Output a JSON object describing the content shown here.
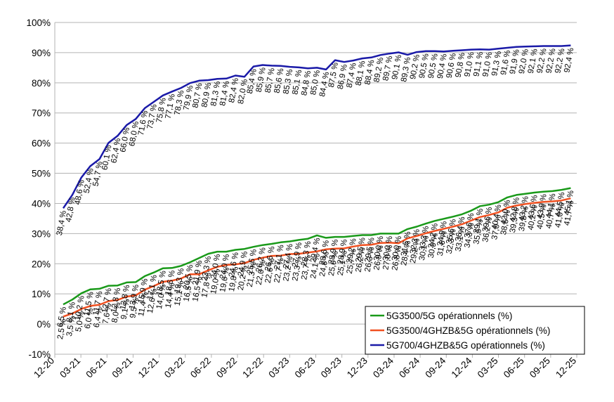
{
  "chart_data": {
    "type": "line",
    "title": "",
    "xlabel": "",
    "ylabel": "",
    "ylim": [
      -10,
      100
    ],
    "yticks": [
      -10,
      0,
      10,
      20,
      30,
      40,
      50,
      60,
      70,
      80,
      90,
      100
    ],
    "ytick_labels": [
      "-10%",
      "0%",
      "10%",
      "20%",
      "30%",
      "40%",
      "50%",
      "60%",
      "70%",
      "80%",
      "90%",
      "100%"
    ],
    "xtick_labels": [
      "12-20",
      "03-21",
      "06-21",
      "09-21",
      "12-21",
      "03-22",
      "06-22",
      "09-22",
      "12-22",
      "03-23",
      "06-23",
      "09-23",
      "12-23",
      "03-24",
      "06-24",
      "09-24",
      "12-24",
      "03-25",
      "06-25",
      "09-25",
      "12-25"
    ],
    "x_start_label": "12-20",
    "grid": "horizontal",
    "legend_position": "bottom-right",
    "series": [
      {
        "name": "5G3500/5G opérationnels (%)",
        "color": "#1a9a1a",
        "values": [
          6.5,
          8.1,
          10.2,
          11.5,
          11.7,
          12.7,
          12.8,
          13.8,
          13.9,
          15.9,
          17.1,
          18.5,
          18.6,
          19.3,
          20.5,
          21.9,
          23.3,
          24.0,
          24.0,
          24.6,
          24.9,
          25.6,
          26.2,
          26.6,
          27.1,
          27.4,
          27.9,
          28.3,
          29.4,
          28.6,
          28.9,
          28.9,
          29.2,
          29.5,
          29.5,
          30.0,
          30.0,
          30.0,
          31.5,
          32.3,
          33.3,
          34.2,
          34.9,
          35.6,
          36.4,
          37.6,
          39.1,
          39.6,
          40.4,
          42.0,
          42.8,
          43.2,
          43.6,
          43.9,
          44.1,
          44.5,
          45.1
        ]
      },
      {
        "name": "5G3500/4GHZB&5G opérationnels (%)",
        "color": "#f05020",
        "values": [
          2.5,
          3.5,
          5.0,
          6.0,
          6.4,
          7.6,
          8.0,
          9.1,
          9.5,
          11.4,
          12.6,
          14.0,
          14.4,
          15.1,
          16.5,
          16.5,
          17.8,
          19.0,
          19.6,
          19.8,
          20.2,
          21.3,
          22.0,
          22.6,
          22.7,
          23.2,
          23.3,
          23.7,
          24.1,
          24.8,
          25.0,
          25.1,
          25.7,
          26.2,
          26.3,
          26.9,
          27.0,
          26.8,
          28.4,
          29.2,
          30.1,
          30.9,
          31.6,
          32.3,
          33.1,
          34.3,
          35.5,
          36.2,
          37.0,
          38.6,
          39.3,
          39.8,
          40.2,
          40.5,
          40.7,
          41.0,
          41.7
        ]
      },
      {
        "name": "5G700/4GHZB&5G opérationnels (%)",
        "color": "#1a1aa8",
        "values": [
          38.4,
          42.8,
          48.6,
          52.4,
          54.7,
          60.1,
          62.4,
          66.0,
          68.0,
          71.6,
          73.7,
          75.8,
          77.1,
          78.3,
          79.9,
          80.7,
          80.9,
          81.3,
          81.4,
          82.4,
          82.0,
          85.4,
          85.9,
          85.7,
          85.6,
          85.3,
          85.1,
          84.8,
          85.0,
          84.4,
          87.5,
          86.9,
          87.4,
          88.1,
          88.4,
          89.2,
          89.7,
          90.1,
          89.3,
          90.2,
          90.5,
          90.5,
          90.4,
          90.6,
          90.8,
          91.0,
          91.1,
          91.0,
          91.3,
          91.6,
          91.9,
          92.0,
          92.1,
          92.2,
          92.2,
          92.2,
          92.4
        ]
      }
    ],
    "data_labels": [
      [
        "6,5 %",
        "8,1 %",
        "10,2 %",
        "11,5 %",
        "11,7 %",
        "12,7 %",
        "12,8 %",
        "13,8 %",
        "13,9 %",
        "15,9 %",
        "17,1 %",
        "18,5 %",
        "18,6 %",
        "19,3 %",
        "20,5 %",
        "21,9 %",
        "23,3 %",
        "24,0 %",
        "24,0 %",
        "24,6 %",
        "24,9 %",
        "25,6 %",
        "26,2 %",
        "26,6 %",
        "27,1 %",
        "27,4 %",
        "27,9 %",
        "28,3 %",
        "29,4 %",
        "28,6 %",
        "28,9 %",
        "28,9 %",
        "29,2 %",
        "29,5 %",
        "29,5 %",
        "30,0 %",
        "30,0 %",
        "30,0 %",
        "31,5 %",
        "32,3 %",
        "33,3 %",
        "34,2 %",
        "34,9 %",
        "35,6 %",
        "36,4 %",
        "37,6 %",
        "39,1 %",
        "39,6 %",
        "40,4 %",
        "42,0 %",
        "42,8 %",
        "43,2 %",
        "43,6 %",
        "43,9 %",
        "44,1 %",
        "44,5 %",
        "45,1 %"
      ],
      [
        "2,5 %",
        "3,5 %",
        "5,0 %",
        "6,0 %",
        "6,4 %",
        "7,6 %",
        "8,0 %",
        "9,1 %",
        "9,5 %",
        "11,4 %",
        "12,6 %",
        "14,0 %",
        "14,4 %",
        "15,1 %",
        "16,5 %",
        "16,5 %",
        "17,8 %",
        "19,0 %",
        "19,6 %",
        "19,8 %",
        "20,2 %",
        "21,3 %",
        "22,0 %",
        "22,6 %",
        "22,7 %",
        "23,2 %",
        "23,3 %",
        "23,7 %",
        "24,1 %",
        "24,8 %",
        "25,0 %",
        "25,1 %",
        "25,7 %",
        "26,2 %",
        "26,3 %",
        "26,9 %",
        "27,0 %",
        "26,8 %",
        "28,4 %",
        "29,2 %",
        "30,1 %",
        "30,9 %",
        "31,6 %",
        "32,3 %",
        "33,1 %",
        "34,3 %",
        "35,5 %",
        "36,2 %",
        "37,0 %",
        "38,6 %",
        "39,3 %",
        "39,8 %",
        "40,2 %",
        "40,5 %",
        "40,7 %",
        "41,0 %",
        "41,7 %"
      ],
      [
        "38,4 %",
        "42,8 %",
        "48,6 %",
        "52,4 %",
        "54,7 %",
        "60,1 %",
        "62,4 %",
        "66,0 %",
        "68,0 %",
        "71,6 %",
        "73,7 %",
        "75,8 %",
        "77,1 %",
        "78,3 %",
        "79,9 %",
        "80,7 %",
        "80,9 %",
        "81,3 %",
        "81,4 %",
        "82,4 %",
        "82,0 %",
        "85,4 %",
        "85,9 %",
        "85,7 %",
        "85,6 %",
        "85,3 %",
        "85,1 %",
        "84,8 %",
        "85,0 %",
        "84,4 %",
        "87,5 %",
        "86,9 %",
        "87,4 %",
        "88,1 %",
        "88,4 %",
        "89,2 %",
        "89,7 %",
        "90,1 %",
        "89,3 %",
        "90,2 %",
        "90,5 %",
        "90,5 %",
        "90,4 %",
        "90,6 %",
        "90,8 %",
        "91,0 %",
        "91,1 %",
        "91,0 %",
        "91,3 %",
        "91,6 %",
        "91,9 %",
        "92,0 %",
        "92,1 %",
        "92,2 %",
        "92,2 %",
        "92,2 %",
        "92,4 %"
      ]
    ]
  }
}
